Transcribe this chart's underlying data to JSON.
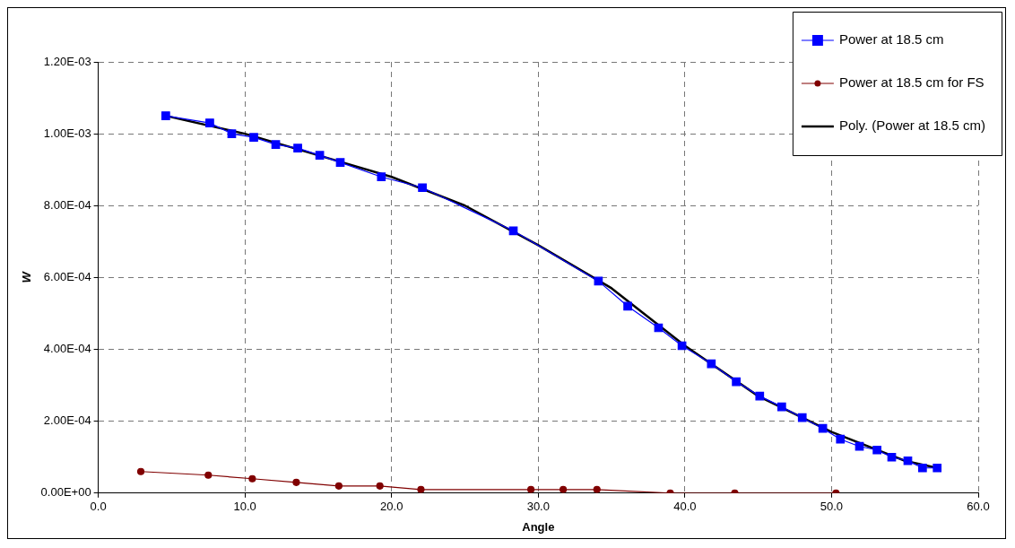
{
  "chart_data": {
    "type": "line",
    "xlabel": "Angle",
    "ylabel": "W",
    "xlim": [
      0,
      60
    ],
    "ylim": [
      0,
      0.0012
    ],
    "xticks": [
      {
        "value": 0,
        "label": "0.0"
      },
      {
        "value": 10,
        "label": "10.0"
      },
      {
        "value": 20,
        "label": "20.0"
      },
      {
        "value": 30,
        "label": "30.0"
      },
      {
        "value": 40,
        "label": "40.0"
      },
      {
        "value": 50,
        "label": "50.0"
      },
      {
        "value": 60,
        "label": "60.0"
      }
    ],
    "yticks": [
      {
        "value": 0,
        "label": "0.00E+00"
      },
      {
        "value": 0.0002,
        "label": "2.00E-04"
      },
      {
        "value": 0.0004,
        "label": "4.00E-04"
      },
      {
        "value": 0.0006,
        "label": "6.00E-04"
      },
      {
        "value": 0.0008,
        "label": "8.00E-04"
      },
      {
        "value": 0.001,
        "label": "1.00E-03"
      },
      {
        "value": 0.0012,
        "label": "1.20E-03"
      }
    ],
    "grid": true,
    "legend": "top right",
    "series": [
      {
        "name": "Power at 18.5 cm",
        "color": "#0000ff",
        "marker": "square",
        "x": [
          4.6,
          7.6,
          9.1,
          10.6,
          12.1,
          13.6,
          15.1,
          16.5,
          19.3,
          22.1,
          28.3,
          34.1,
          36.1,
          38.2,
          39.8,
          41.8,
          43.5,
          45.1,
          46.6,
          48.0,
          49.4,
          50.6,
          51.9,
          53.1,
          54.1,
          55.2,
          56.2,
          57.2
        ],
        "values": [
          0.00105,
          0.00103,
          0.001,
          0.00099,
          0.00097,
          0.00096,
          0.00094,
          0.00092,
          0.00088,
          0.00085,
          0.00073,
          0.00059,
          0.00052,
          0.00046,
          0.00041,
          0.00036,
          0.00031,
          0.00027,
          0.00024,
          0.00021,
          0.00018,
          0.00015,
          0.00013,
          0.00012,
          0.0001,
          9e-05,
          7e-05,
          7e-05
        ]
      },
      {
        "name": "Power at 18.5 cm for FS",
        "color": "#800000",
        "marker": "circle",
        "x": [
          2.9,
          7.5,
          10.5,
          13.5,
          16.4,
          19.2,
          22.0,
          29.5,
          31.7,
          34.0,
          39.0,
          43.4,
          50.3
        ],
        "values": [
          6e-05,
          5e-05,
          4e-05,
          3e-05,
          2e-05,
          2e-05,
          1e-05,
          1e-05,
          1e-05,
          1e-05,
          0,
          0,
          0
        ]
      },
      {
        "name": "Poly. (Power at 18.5 cm)",
        "color": "#000000",
        "marker": "none",
        "x": [
          4.6,
          10,
          15,
          20,
          25,
          30,
          35,
          40,
          45,
          50,
          55,
          57.2
        ],
        "values": [
          0.00105,
          0.001,
          0.00094,
          0.00088,
          0.0008,
          0.00069,
          0.00057,
          0.00041,
          0.00027,
          0.00017,
          9e-05,
          7e-05
        ]
      }
    ]
  }
}
